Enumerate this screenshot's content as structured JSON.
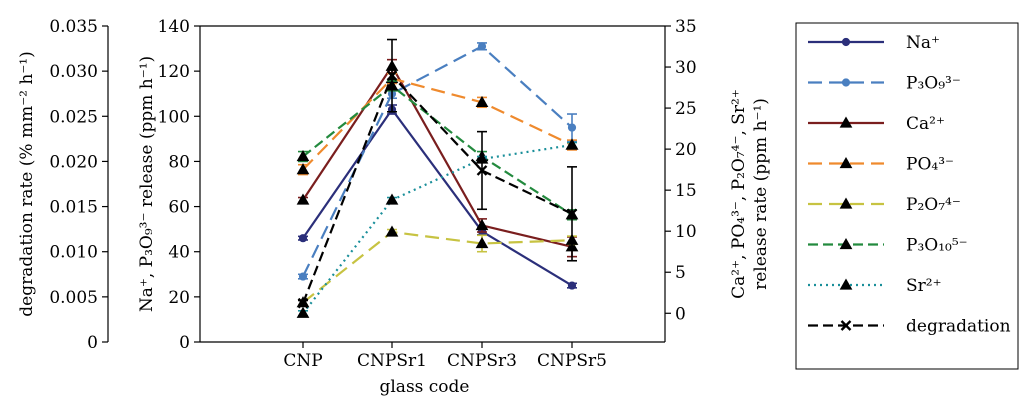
{
  "chart_data": {
    "type": "line",
    "xlabel": "glass code",
    "categories": [
      "CNP",
      "CNPSr1",
      "CNPSr3",
      "CNPSr5"
    ],
    "axes": {
      "degradation": {
        "label": "degradation rate (% mm⁻² h⁻¹)",
        "ylim": [
          0,
          0.035
        ],
        "ticks": [
          "0",
          "0.005",
          "0.010",
          "0.015",
          "0.020",
          "0.025",
          "0.030",
          "0.035"
        ],
        "tick_values": [
          0,
          0.005,
          0.01,
          0.015,
          0.02,
          0.025,
          0.03,
          0.035
        ]
      },
      "na_p3o9": {
        "label": "Na⁺, P₃O₉³⁻ release (ppm h⁻¹)",
        "ylim": [
          0,
          140
        ],
        "ticks": [
          "0",
          "20",
          "40",
          "60",
          "80",
          "100",
          "120",
          "140"
        ],
        "tick_values": [
          0,
          20,
          40,
          60,
          80,
          100,
          120,
          140
        ]
      },
      "right": {
        "label_line1": "Ca²⁺, PO₄³⁻, P₂O₇⁴⁻, Sr²⁺",
        "label_line2": "release rate (ppm h⁻¹)",
        "ylim": [
          -3.5,
          35
        ],
        "ticks": [
          "0",
          "5",
          "10",
          "15",
          "20",
          "25",
          "30",
          "35"
        ],
        "tick_values": [
          0,
          5,
          10,
          15,
          20,
          25,
          30,
          35
        ]
      }
    },
    "series": [
      {
        "name": "Na⁺",
        "axis": "na_p3o9",
        "color": "#2b2f7a",
        "dash": "",
        "marker": "circle",
        "values": [
          46,
          103,
          49,
          25
        ],
        "errors": [
          0.8,
          2,
          1.5,
          1
        ]
      },
      {
        "name": "P₃O₉³⁻",
        "axis": "na_p3o9",
        "color": "#4a7fc0",
        "dash": "14,7",
        "marker": "circle",
        "values": [
          29,
          110,
          131,
          95
        ],
        "errors": [
          1,
          2,
          1.5,
          6
        ]
      },
      {
        "name": "Ca²⁺",
        "axis": "right",
        "color": "#7a1e1e",
        "dash": "",
        "marker": "triangle",
        "values": [
          13.8,
          30.1,
          10.7,
          8.1
        ],
        "errors": [
          0.3,
          0.8,
          0.8,
          1.2
        ]
      },
      {
        "name": "PO₄³⁻",
        "axis": "right",
        "color": "#ef8a2d",
        "dash": "14,7",
        "marker": "triangle",
        "values": [
          17.5,
          28.6,
          25.7,
          20.5
        ],
        "errors": [
          0.6,
          0.6,
          0.6,
          0.6
        ]
      },
      {
        "name": "P₂O₇⁴⁻",
        "axis": "right",
        "color": "#c7c342",
        "dash": "14,7",
        "marker": "triangle",
        "values": [
          1.3,
          9.9,
          8.5,
          8.9
        ],
        "errors": [
          0.3,
          0.3,
          1.0,
          0.5
        ]
      },
      {
        "name": "P₃O₁₀⁵⁻",
        "axis": "right",
        "color": "#238a3e",
        "dash": "10,5",
        "marker": "triangle",
        "values": [
          19.1,
          27.7,
          19.1,
          12.0
        ],
        "errors": [
          0.6,
          0.6,
          0.6,
          0.6
        ]
      },
      {
        "name": "Sr²⁺",
        "axis": "right",
        "color": "#1a8f9a",
        "dash": "2,4",
        "marker": "triangle",
        "values": [
          0,
          13.8,
          18.8,
          20.5
        ],
        "errors": [
          0.3,
          0.3,
          0.3,
          0.3
        ]
      },
      {
        "name": "degradation",
        "axis": "degradation",
        "color": "#000000",
        "dash": "10,5",
        "marker": "x",
        "values": [
          0.0043,
          0.0295,
          0.019,
          0.0142
        ],
        "errors": [
          0.0003,
          0.004,
          0.0043,
          0.0052
        ]
      }
    ],
    "legend": {
      "placement": "outside-right"
    },
    "grid": false
  }
}
